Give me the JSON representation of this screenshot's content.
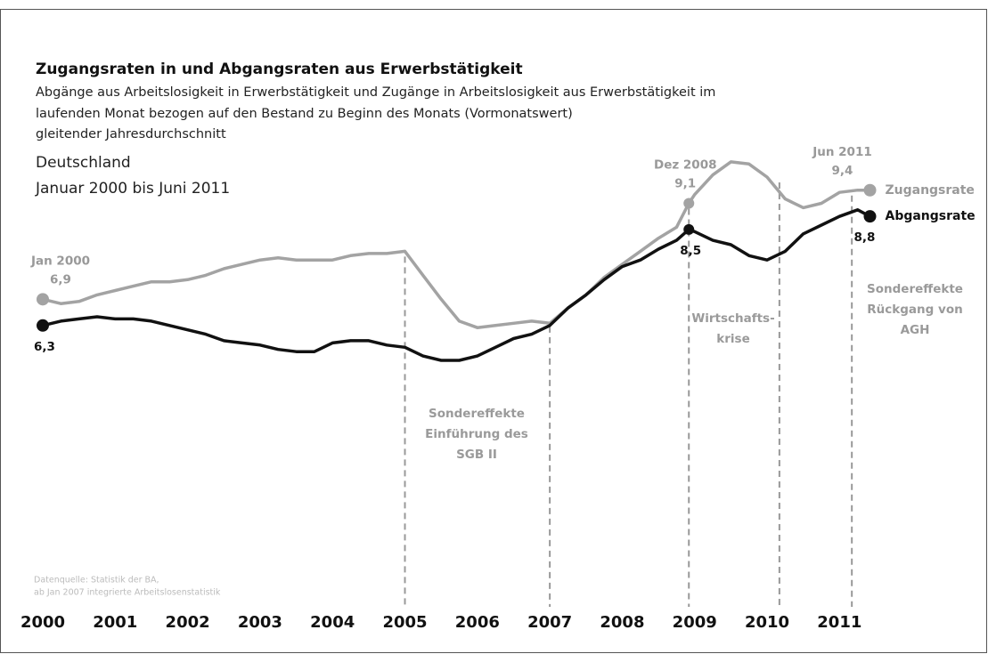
{
  "chart_data": {
    "type": "line",
    "title": "Zugangsraten in und Abgangsraten aus Erwerbstätigkeit",
    "subtitle": [
      "Abgänge aus Arbeitslosigkeit in Erwerbstätigkeit und Zugänge in Arbeitslosigkeit aus Erwerbstätigkeit im",
      "laufenden Monat bezogen auf den Bestand zu Beginn des Monats (Vormonatswert)",
      "gleitender Jahresdurchschnitt"
    ],
    "region": "Deutschland",
    "period": "Januar 2000 bis Juni 2011",
    "source": [
      "Datenquelle: Statistik der BA,",
      "ab Jan 2007 integrierte Arbeitslosenstatistik"
    ],
    "x": [
      2000,
      2000.25,
      2000.5,
      2000.75,
      2001,
      2001.25,
      2001.5,
      2001.75,
      2002,
      2002.25,
      2002.5,
      2002.75,
      2003,
      2003.25,
      2003.5,
      2003.75,
      2004,
      2004.25,
      2004.5,
      2004.75,
      2005,
      2005.25,
      2005.5,
      2005.75,
      2006,
      2006.25,
      2006.5,
      2006.75,
      2007,
      2007.25,
      2007.5,
      2007.75,
      2008,
      2008.25,
      2008.5,
      2008.75,
      2008.92,
      2009,
      2009.25,
      2009.5,
      2009.75,
      2010,
      2010.25,
      2010.5,
      2010.75,
      2011,
      2011.25,
      2011.42
    ],
    "series": [
      {
        "name": "Zugangsrate",
        "color": "#a3a3a3",
        "values": [
          6.9,
          6.8,
          6.85,
          7.0,
          7.1,
          7.2,
          7.3,
          7.3,
          7.35,
          7.45,
          7.6,
          7.7,
          7.8,
          7.85,
          7.8,
          7.8,
          7.8,
          7.9,
          7.95,
          7.95,
          8.0,
          7.45,
          6.9,
          6.4,
          6.25,
          6.3,
          6.35,
          6.4,
          6.35,
          6.7,
          7.0,
          7.4,
          7.7,
          8.0,
          8.3,
          8.55,
          9.1,
          9.3,
          9.75,
          10.05,
          10.0,
          9.7,
          9.2,
          9.0,
          9.1,
          9.35,
          9.4,
          9.4
        ],
        "value_labels": [
          "6,9",
          null,
          null,
          null,
          null,
          null,
          null,
          null,
          null,
          null,
          null,
          null,
          null,
          null,
          null,
          null,
          null,
          null,
          null,
          null,
          null,
          null,
          null,
          null,
          null,
          null,
          null,
          null,
          null,
          null,
          null,
          null,
          null,
          null,
          null,
          null,
          "9,1",
          null,
          null,
          null,
          null,
          null,
          null,
          null,
          null,
          null,
          null,
          "9,4"
        ],
        "date_labels": [
          "Jan 2000",
          null,
          null,
          null,
          null,
          null,
          null,
          null,
          null,
          null,
          null,
          null,
          null,
          null,
          null,
          null,
          null,
          null,
          null,
          null,
          null,
          null,
          null,
          null,
          null,
          null,
          null,
          null,
          null,
          null,
          null,
          null,
          null,
          null,
          null,
          null,
          "Dez 2008",
          null,
          null,
          null,
          null,
          null,
          null,
          null,
          null,
          null,
          null,
          "Jun 2011"
        ]
      },
      {
        "name": "Abgangsrate",
        "color": "#111111",
        "values": [
          6.3,
          6.4,
          6.45,
          6.5,
          6.45,
          6.45,
          6.4,
          6.3,
          6.2,
          6.1,
          5.95,
          5.9,
          5.85,
          5.75,
          5.7,
          5.7,
          5.9,
          5.95,
          5.95,
          5.85,
          5.8,
          5.6,
          5.5,
          5.5,
          5.6,
          5.8,
          6.0,
          6.1,
          6.3,
          6.7,
          7.0,
          7.35,
          7.65,
          7.8,
          8.05,
          8.25,
          8.5,
          8.45,
          8.25,
          8.15,
          7.9,
          7.8,
          8.0,
          8.4,
          8.6,
          8.8,
          8.95,
          8.8
        ],
        "value_labels": [
          "6,3",
          null,
          null,
          null,
          null,
          null,
          null,
          null,
          null,
          null,
          null,
          null,
          null,
          null,
          null,
          null,
          null,
          null,
          null,
          null,
          null,
          null,
          null,
          null,
          null,
          null,
          null,
          null,
          null,
          null,
          null,
          null,
          null,
          null,
          null,
          null,
          "8,5",
          null,
          null,
          null,
          null,
          null,
          null,
          null,
          null,
          null,
          null,
          "8,8"
        ]
      }
    ],
    "xlim": [
      2000,
      2011.5
    ],
    "xticks": [
      2000,
      2001,
      2002,
      2003,
      2004,
      2005,
      2006,
      2007,
      2008,
      2009,
      2010,
      2011
    ],
    "ylim": [
      0.3,
      10.7
    ],
    "vlines": [
      2005,
      2007,
      2008.92,
      2010.17,
      2011.17
    ],
    "annotations": [
      {
        "lines": [
          "Sondereffekte",
          "Einführung des",
          "SGB II"
        ]
      },
      {
        "lines": [
          "Wirtschafts-",
          "krise"
        ]
      },
      {
        "lines": [
          "Sondereffekte",
          "Rückgang von",
          "AGH"
        ]
      }
    ]
  }
}
